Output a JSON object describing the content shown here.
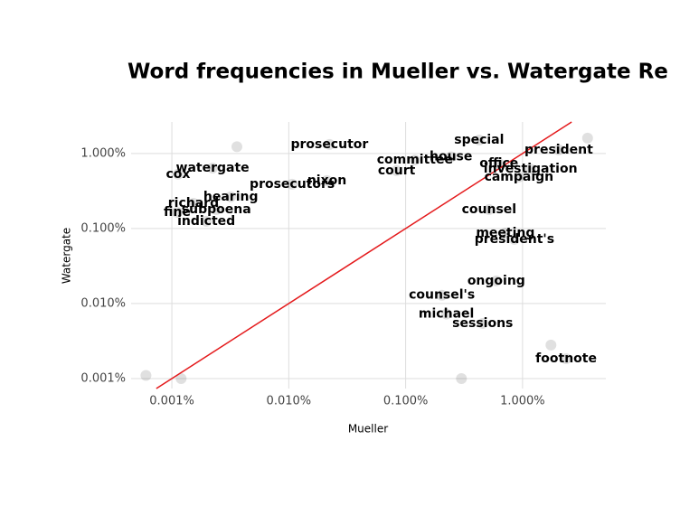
{
  "chart_data": {
    "type": "scatter",
    "title": "Word frequencies in Mueller vs. Watergate Re",
    "xlabel": "Mueller",
    "ylabel": "Watergate",
    "xlog": true,
    "ylog": true,
    "grid": true,
    "point_color": "#000000",
    "point_opacity": 0.12,
    "line_color": "#e41a1c",
    "identity_line": true,
    "xlim": [
      0.000448,
      5.16
    ],
    "ylim": [
      0.000736,
      2.63
    ],
    "xticks": [
      {
        "value": 0.001,
        "label": "0.001%"
      },
      {
        "value": 0.01,
        "label": "0.010%"
      },
      {
        "value": 0.1,
        "label": "0.100%"
      },
      {
        "value": 1,
        "label": "1.000%"
      }
    ],
    "yticks": [
      {
        "value": 0.001,
        "label": "0.001%"
      },
      {
        "value": 0.01,
        "label": "0.010%"
      },
      {
        "value": 0.1,
        "label": "0.100%"
      },
      {
        "value": 1,
        "label": "1.000%"
      }
    ],
    "labels": [
      "prosecutor",
      "special",
      "president",
      "watergate",
      "cox",
      "house",
      "committee",
      "court",
      "office",
      "investigation",
      "campaign",
      "richard",
      "hearing",
      "fine",
      "subpoena",
      "prosecutors",
      "indicted",
      "counsel",
      "president's",
      "meeting",
      "ongoing",
      "counsel's",
      "michael",
      "sessions",
      "footnote",
      "nixon",
      null,
      null,
      null,
      null,
      null,
      null
    ],
    "x": [
      0.0223,
      0.425,
      2.04,
      0.00223,
      0.00113,
      0.244,
      0.12,
      0.0836,
      0.628,
      1.17,
      0.931,
      0.00153,
      0.00319,
      0.00111,
      0.0024,
      0.0107,
      0.00197,
      0.517,
      0.852,
      0.713,
      0.596,
      0.204,
      0.223,
      0.456,
      2.36,
      0.0212,
      0.0036,
      3.6,
      1.75,
      0.0006,
      0.0012,
      0.3
    ],
    "y": [
      1.32,
      1.51,
      1.12,
      0.64,
      0.53,
      0.9,
      0.82,
      0.59,
      0.736,
      0.62,
      0.486,
      0.217,
      0.264,
      0.165,
      0.179,
      0.389,
      0.125,
      0.179,
      0.0717,
      0.0871,
      0.02,
      0.0129,
      0.00724,
      0.00543,
      0.00184,
      0.435,
      1.23,
      1.6,
      0.0028,
      0.0011,
      0.001,
      0.001
    ]
  }
}
